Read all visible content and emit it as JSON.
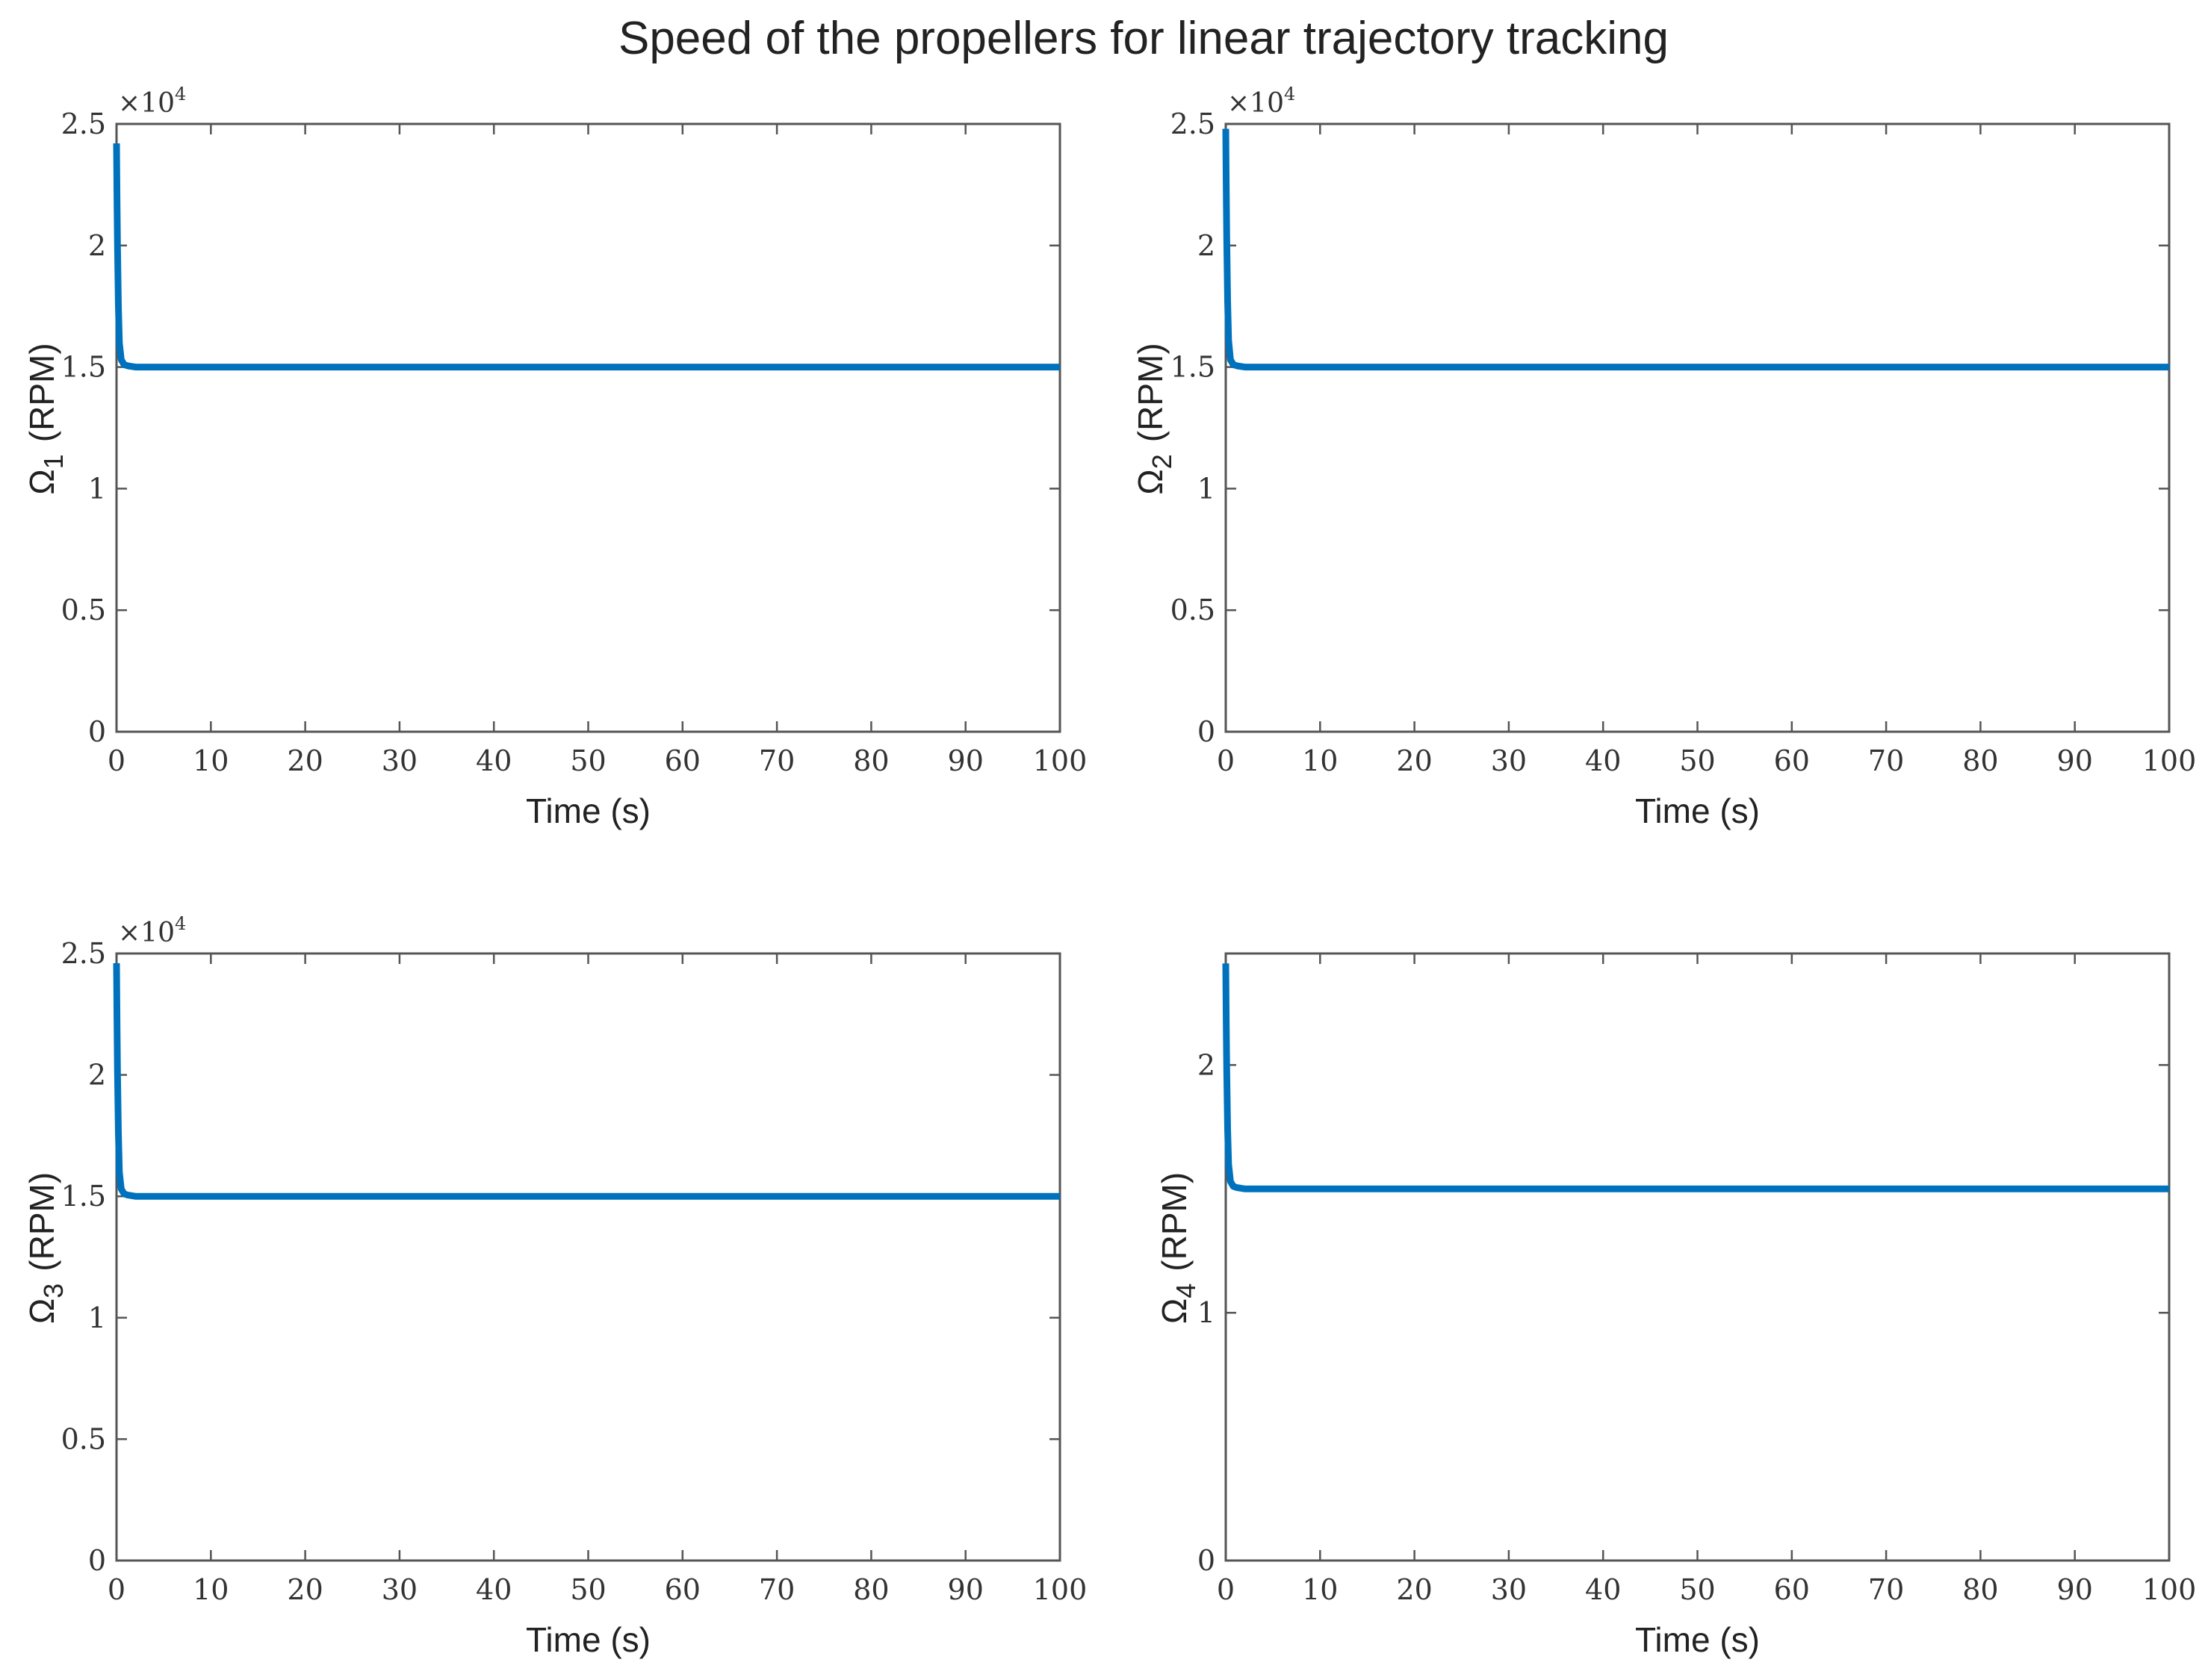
{
  "figure": {
    "title": "Speed of the propellers for linear trajectory tracking",
    "line_color": "#0072BD"
  },
  "chart_data": [
    {
      "type": "line",
      "ylabel_symbol": "Ω",
      "ylabel_subscript": "1",
      "ylabel_unit": "(RPM)",
      "xlabel": "Time (s)",
      "xlim": [
        0,
        100
      ],
      "ylim": [
        0,
        25000
      ],
      "x_ticks": [
        0,
        10,
        20,
        30,
        40,
        50,
        60,
        70,
        80,
        90,
        100
      ],
      "y_ticks": [
        0,
        5000,
        10000,
        15000,
        20000,
        25000
      ],
      "y_tick_labels": [
        "0",
        "0.5",
        "1",
        "1.5",
        "2",
        "2.5"
      ],
      "y_multiplier": {
        "base": "×10",
        "exponent": "4"
      },
      "series": [
        {
          "x": [
            0,
            0.05,
            0.1,
            0.2,
            0.3,
            0.5,
            0.8,
            1.2,
            2,
            5,
            100
          ],
          "values": [
            24200,
            22000,
            20000,
            17500,
            16000,
            15300,
            15100,
            15050,
            15000,
            15000,
            15000
          ]
        }
      ]
    },
    {
      "type": "line",
      "ylabel_symbol": "Ω",
      "ylabel_subscript": "2",
      "ylabel_unit": "(RPM)",
      "xlabel": "Time (s)",
      "xlim": [
        0,
        100
      ],
      "ylim": [
        0,
        25000
      ],
      "x_ticks": [
        0,
        10,
        20,
        30,
        40,
        50,
        60,
        70,
        80,
        90,
        100
      ],
      "y_ticks": [
        0,
        5000,
        10000,
        15000,
        20000,
        25000
      ],
      "y_tick_labels": [
        "0",
        "0.5",
        "1",
        "1.5",
        "2",
        "2.5"
      ],
      "y_multiplier": {
        "base": "×10",
        "exponent": "4"
      },
      "series": [
        {
          "x": [
            0,
            0.05,
            0.1,
            0.2,
            0.3,
            0.5,
            0.8,
            1.2,
            2,
            5,
            100
          ],
          "values": [
            24800,
            22500,
            20300,
            17700,
            16100,
            15300,
            15100,
            15050,
            15000,
            15000,
            15000
          ]
        }
      ]
    },
    {
      "type": "line",
      "ylabel_symbol": "Ω",
      "ylabel_subscript": "3",
      "ylabel_unit": "(RPM)",
      "xlabel": "Time (s)",
      "xlim": [
        0,
        100
      ],
      "ylim": [
        0,
        25000
      ],
      "x_ticks": [
        0,
        10,
        20,
        30,
        40,
        50,
        60,
        70,
        80,
        90,
        100
      ],
      "y_ticks": [
        0,
        5000,
        10000,
        15000,
        20000,
        25000
      ],
      "y_tick_labels": [
        "0",
        "0.5",
        "1",
        "1.5",
        "2",
        "2.5"
      ],
      "y_multiplier": {
        "base": "×10",
        "exponent": "4"
      },
      "series": [
        {
          "x": [
            0,
            0.05,
            0.1,
            0.2,
            0.3,
            0.5,
            0.8,
            1.2,
            2,
            5,
            100
          ],
          "values": [
            24600,
            22300,
            20100,
            17600,
            16000,
            15300,
            15100,
            15050,
            15000,
            15000,
            15000
          ]
        }
      ]
    },
    {
      "type": "line",
      "ylabel_symbol": "Ω",
      "ylabel_subscript": "4",
      "ylabel_unit": "(RPM)",
      "xlabel": "Time (s)",
      "xlim": [
        0,
        100
      ],
      "ylim": [
        0,
        24500
      ],
      "x_ticks": [
        0,
        10,
        20,
        30,
        40,
        50,
        60,
        70,
        80,
        90,
        100
      ],
      "y_ticks": [
        0,
        10000,
        20000
      ],
      "y_tick_labels": [
        "0",
        "1",
        "2"
      ],
      "series": [
        {
          "x": [
            0,
            0.05,
            0.1,
            0.2,
            0.3,
            0.5,
            0.8,
            1.2,
            2,
            5,
            100
          ],
          "values": [
            24100,
            21800,
            19800,
            17400,
            16000,
            15300,
            15100,
            15050,
            15000,
            15000,
            15000
          ]
        }
      ]
    }
  ]
}
